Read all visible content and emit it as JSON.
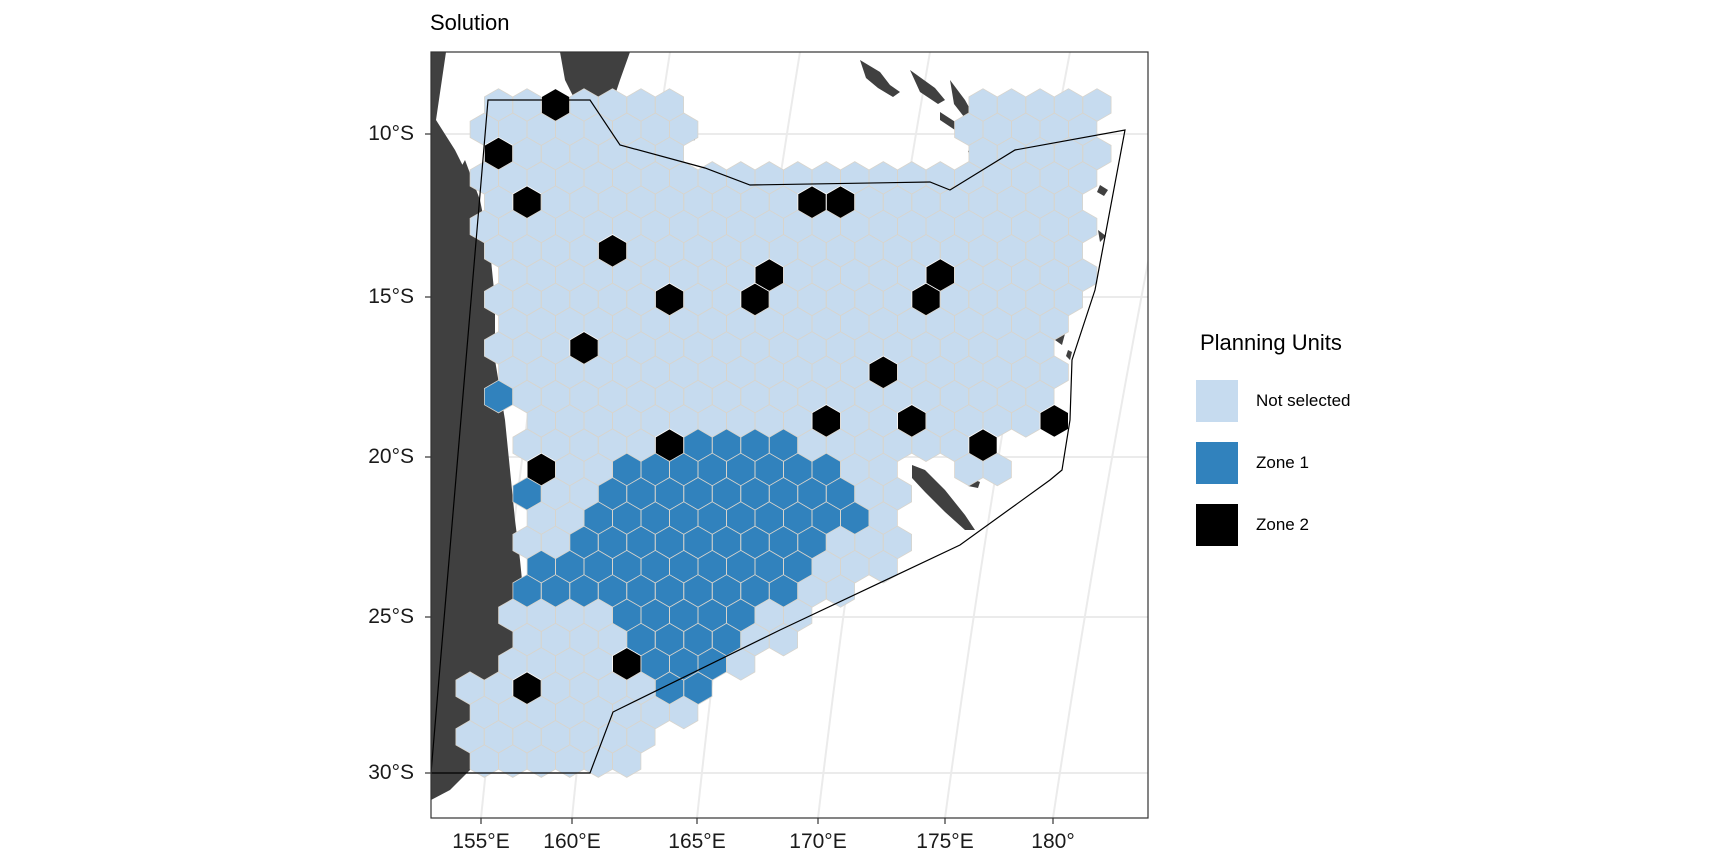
{
  "title": "Solution",
  "axes": {
    "y_ticks": [
      "10°S",
      "15°S",
      "20°S",
      "25°S",
      "30°S"
    ],
    "x_ticks": [
      "155°E",
      "160°E",
      "165°E",
      "170°E",
      "175°E",
      "180°"
    ]
  },
  "legend": {
    "title": "Planning Units",
    "items": [
      {
        "label": "Not selected",
        "color": "#c6dbef"
      },
      {
        "label": "Zone 1",
        "color": "#3182bd"
      },
      {
        "label": "Zone 2",
        "color": "#000000"
      }
    ]
  },
  "colors": {
    "land": "#404040",
    "grid": "#ebebeb",
    "hex_outline": "#d8d4cc"
  }
}
